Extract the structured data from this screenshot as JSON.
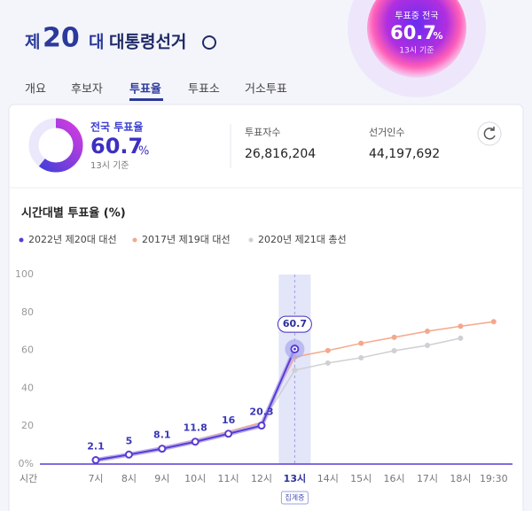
{
  "header": {
    "logo": {
      "prefix": "제",
      "number": "20",
      "suffix": "대",
      "name": "대통령선거"
    },
    "badge": {
      "label": "투표중 전국",
      "value": "60.7",
      "unit": "%",
      "basis": "13시 기준"
    }
  },
  "tabs": [
    {
      "label": "개요",
      "active": false
    },
    {
      "label": "후보자",
      "active": false
    },
    {
      "label": "투표율",
      "active": true
    },
    {
      "label": "투표소",
      "active": false
    },
    {
      "label": "거소투표",
      "active": false
    }
  ],
  "summary": {
    "rate_label": "전국 투표율",
    "rate": 60.7,
    "rate_unit": "%",
    "basis": "13시 기준",
    "voters_label": "투표자수",
    "voters": "26,816,204",
    "electorate_label": "선거인수",
    "electorate": "44,197,692"
  },
  "chart_data": {
    "type": "line",
    "title": "시간대별 투표율 (%)",
    "x_label": "시간",
    "current_tag": "집계중",
    "current_index": 6,
    "categories": [
      "7시",
      "8시",
      "9시",
      "10시",
      "11시",
      "12시",
      "13시",
      "14시",
      "15시",
      "16시",
      "17시",
      "18시",
      "19:30"
    ],
    "series": [
      {
        "name": "2022년 제20대 대선",
        "color": "#5a3cd2",
        "values": [
          2.1,
          5.0,
          8.1,
          11.8,
          16.0,
          20.3,
          60.7,
          null,
          null,
          null,
          null,
          null,
          null
        ]
      },
      {
        "name": "2017년 제19대 대선",
        "color": "#f4a88b",
        "values": [
          2.3,
          5.5,
          9.0,
          12.8,
          17.2,
          22.0,
          56.5,
          59.9,
          63.7,
          66.9,
          70.1,
          72.7,
          75.1
        ]
      },
      {
        "name": "2020년 제21대 총선",
        "color": "#cfcfd4",
        "values": [
          1.9,
          5.0,
          8.4,
          12.1,
          16.5,
          21.5,
          49.5,
          53.3,
          56.1,
          59.8,
          62.6,
          66.4,
          null
        ]
      }
    ],
    "ylim": [
      0,
      100
    ],
    "yticks": [
      {
        "value": 0,
        "label": "0%"
      },
      20,
      40,
      60,
      80,
      100
    ],
    "grid": false
  }
}
